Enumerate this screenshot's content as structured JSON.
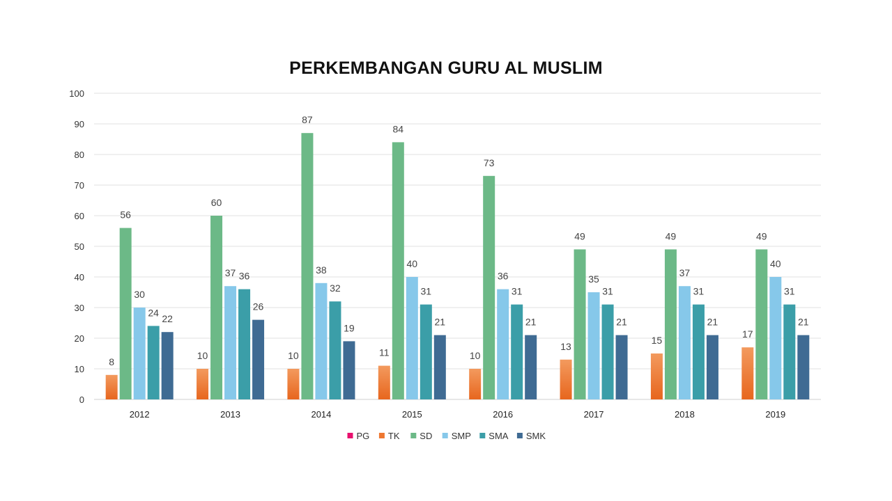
{
  "chart_data": {
    "type": "bar",
    "title": "PERKEMBANGAN GURU AL MUSLIM",
    "xlabel": "",
    "ylabel": "",
    "ylim": [
      0,
      100
    ],
    "yticks": [
      0,
      10,
      20,
      30,
      40,
      50,
      60,
      70,
      80,
      90,
      100
    ],
    "grid": true,
    "legend_position": "bottom",
    "categories": [
      "2012",
      "2013",
      "2014",
      "2015",
      "2016",
      "2017",
      "2018",
      "2019"
    ],
    "series": [
      {
        "name": "PG",
        "color": "#e8106e",
        "values": [
          null,
          null,
          null,
          null,
          null,
          null,
          null,
          null
        ]
      },
      {
        "name": "TK",
        "color": "#f07d35",
        "values": [
          8,
          10,
          10,
          11,
          10,
          13,
          15,
          17
        ]
      },
      {
        "name": "SD",
        "color": "#6cb987",
        "values": [
          56,
          60,
          87,
          84,
          73,
          49,
          49,
          49
        ]
      },
      {
        "name": "SMP",
        "color": "#86c8ea",
        "values": [
          30,
          37,
          38,
          40,
          36,
          35,
          37,
          40
        ]
      },
      {
        "name": "SMA",
        "color": "#3b9ea8",
        "values": [
          24,
          36,
          32,
          31,
          31,
          31,
          31,
          31
        ]
      },
      {
        "name": "SMK",
        "color": "#3f6b93",
        "values": [
          22,
          26,
          19,
          21,
          21,
          21,
          21,
          21
        ]
      }
    ]
  }
}
